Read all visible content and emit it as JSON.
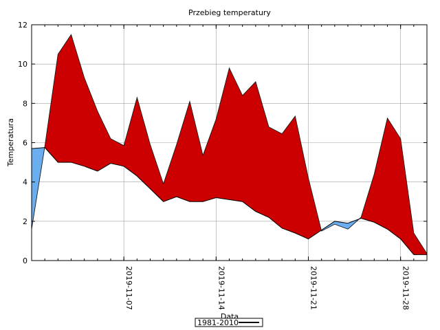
{
  "chart_data": {
    "type": "area",
    "title": "Przebieg temperatury",
    "xlabel": "Data",
    "ylabel": "Temperatura",
    "ylim": [
      0,
      12
    ],
    "yticks": [
      0,
      2,
      4,
      6,
      8,
      10,
      12
    ],
    "xlim": [
      "2019-10-31",
      "2019-11-30"
    ],
    "xticks": [
      "2019-11-07",
      "2019-11-14",
      "2019-11-21",
      "2019-11-28"
    ],
    "grid": true,
    "legend": {
      "position": "bottom-center",
      "entries": [
        "1981-2010"
      ]
    },
    "x": [
      "2019-10-31",
      "2019-11-01",
      "2019-11-02",
      "2019-11-03",
      "2019-11-04",
      "2019-11-05",
      "2019-11-06",
      "2019-11-07",
      "2019-11-08",
      "2019-11-09",
      "2019-11-10",
      "2019-11-11",
      "2019-11-12",
      "2019-11-13",
      "2019-11-14",
      "2019-11-15",
      "2019-11-16",
      "2019-11-17",
      "2019-11-18",
      "2019-11-19",
      "2019-11-20",
      "2019-11-21",
      "2019-11-22",
      "2019-11-23",
      "2019-11-24",
      "2019-11-25",
      "2019-11-26",
      "2019-11-27",
      "2019-11-28",
      "2019-11-29",
      "2019-11-30"
    ],
    "series": [
      {
        "values": [
          1.6,
          5.8,
          10.5,
          11.5,
          9.3,
          7.6,
          6.2,
          5.85,
          8.3,
          5.9,
          3.9,
          5.9,
          8.1,
          5.35,
          7.2,
          9.8,
          8.4,
          9.1,
          6.8,
          6.45,
          7.35,
          4.2,
          1.5,
          1.85,
          1.6,
          2.2,
          4.4,
          7.25,
          6.2,
          1.4,
          0.35
        ],
        "color": "#cc0000"
      },
      {
        "name": "1981-2010",
        "values": [
          5.7,
          5.75,
          5.0,
          5.0,
          4.8,
          4.55,
          4.95,
          4.8,
          4.3,
          3.65,
          3.0,
          3.25,
          3.0,
          3.0,
          3.2,
          3.1,
          3.0,
          2.5,
          2.2,
          1.65,
          1.4,
          1.1,
          1.55,
          2.0,
          1.9,
          2.15,
          1.95,
          1.6,
          1.1,
          0.3,
          0.3
        ],
        "color": "#000000"
      }
    ],
    "fill_above_colour": "#cc0000",
    "fill_below_colour": "#6aaef0"
  }
}
